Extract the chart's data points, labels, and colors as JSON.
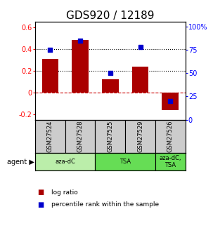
{
  "title": "GDS920 / 12189",
  "samples": [
    "GSM27524",
    "GSM27528",
    "GSM27525",
    "GSM27529",
    "GSM27526"
  ],
  "log_ratios": [
    0.31,
    0.48,
    0.12,
    0.24,
    -0.16
  ],
  "percentile_ranks": [
    75,
    85,
    50,
    78,
    20
  ],
  "bar_color": "#aa0000",
  "dot_color": "#0000cc",
  "ylim_left": [
    -0.25,
    0.65
  ],
  "ylim_right": [
    0,
    105
  ],
  "yticks_left": [
    -0.2,
    0.0,
    0.2,
    0.4,
    0.6
  ],
  "yticks_right": [
    0,
    25,
    50,
    75,
    100
  ],
  "ytick_labels_left": [
    "-0.2",
    "0",
    "0.2",
    "0.4",
    "0.6"
  ],
  "ytick_labels_right": [
    "0",
    "25",
    "50",
    "75",
    "100%"
  ],
  "hlines_dotted": [
    0.2,
    0.4
  ],
  "hline_dashed_color": "#cc0000",
  "agent_groups": [
    {
      "label": "aza-dC",
      "start": 0,
      "end": 2,
      "color": "#bbeeaa"
    },
    {
      "label": "TSA",
      "start": 2,
      "end": 4,
      "color": "#66dd55"
    },
    {
      "label": "aza-dC,\nTSA",
      "start": 4,
      "end": 5,
      "color": "#66dd55"
    }
  ],
  "legend_items": [
    {
      "color": "#aa0000",
      "label": "log ratio"
    },
    {
      "color": "#0000cc",
      "label": "percentile rank within the sample"
    }
  ],
  "sample_box_color": "#cccccc",
  "title_fontsize": 11,
  "tick_fontsize": 7,
  "bar_width": 0.55
}
